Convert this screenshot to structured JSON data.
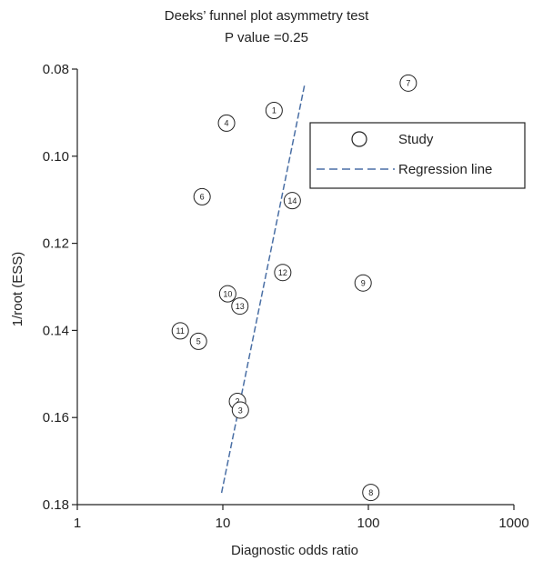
{
  "chart_data": {
    "type": "scatter",
    "title": "Deeks’ funnel plot asymmetry test",
    "subtitle": "P value =0.25",
    "xlabel": "Diagnostic odds ratio",
    "ylabel": "1/root (ESS)",
    "x_scale": "log",
    "xlim": [
      1,
      1000
    ],
    "ylim": [
      0.08,
      0.18
    ],
    "y_reversed": true,
    "x_ticks": [
      {
        "value": 1,
        "label": "1"
      },
      {
        "value": 10,
        "label": "10"
      },
      {
        "value": 100,
        "label": "100"
      },
      {
        "value": 1000,
        "label": "1000"
      }
    ],
    "y_ticks": [
      {
        "value": 0.08,
        "label": "0.08"
      },
      {
        "value": 0.1,
        "label": "0.10"
      },
      {
        "value": 0.12,
        "label": "0.12"
      },
      {
        "value": 0.14,
        "label": "0.14"
      },
      {
        "value": 0.16,
        "label": "0.16"
      },
      {
        "value": 0.18,
        "label": "0.18"
      }
    ],
    "points": [
      {
        "label": "1",
        "x": 22.5,
        "y": 0.0895
      },
      {
        "label": "2",
        "x": 12.6,
        "y": 0.1563
      },
      {
        "label": "3",
        "x": 13.2,
        "y": 0.1583
      },
      {
        "label": "4",
        "x": 10.6,
        "y": 0.0924
      },
      {
        "label": "5",
        "x": 6.8,
        "y": 0.1425
      },
      {
        "label": "6",
        "x": 7.2,
        "y": 0.1093
      },
      {
        "label": "7",
        "x": 188,
        "y": 0.0832
      },
      {
        "label": "8",
        "x": 104,
        "y": 0.1772
      },
      {
        "label": "9",
        "x": 92,
        "y": 0.1291
      },
      {
        "label": "10",
        "x": 10.8,
        "y": 0.1316
      },
      {
        "label": "11",
        "x": 5.1,
        "y": 0.1401
      },
      {
        "label": "12",
        "x": 25.8,
        "y": 0.1267
      },
      {
        "label": "13",
        "x": 13.1,
        "y": 0.1344
      },
      {
        "label": "14",
        "x": 30.0,
        "y": 0.1102
      }
    ],
    "regression_line": {
      "x": [
        9.8,
        36.5
      ],
      "y": [
        0.1773,
        0.0835
      ]
    },
    "legend": {
      "position": "top-right",
      "entries": [
        {
          "label": "Study",
          "marker": "circle"
        },
        {
          "label": "Regression line",
          "marker": "dashed-line"
        }
      ]
    },
    "colors": {
      "line": "#4a6fa5",
      "marker": "#222222",
      "axis": "#222222"
    }
  }
}
